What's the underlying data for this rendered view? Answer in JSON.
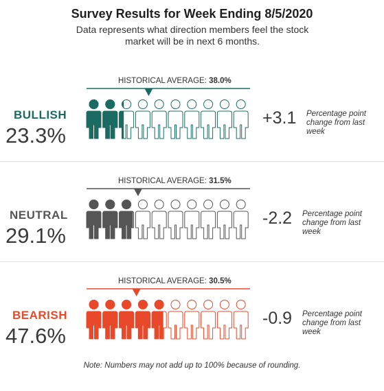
{
  "title": "Survey Results for Week Ending 8/5/2020",
  "subtitle": "Data represents what direction members feel the stock market will be in next 6 months.",
  "footnote": "Note: Numbers may not add up to 100% because of rounding.",
  "chart_data": {
    "type": "pictograph",
    "figures_per_row": 10,
    "series": [
      {
        "name": "BULLISH",
        "value": 23.3,
        "value_label": "23.3%",
        "historical_average": 38.0,
        "historical_label": "HISTORICAL AVERAGE: ",
        "historical_value_label": "38.0%",
        "change": 3.1,
        "change_label": "+3.1",
        "change_note": "Percentage point change from last week",
        "color": "#1b6b63"
      },
      {
        "name": "NEUTRAL",
        "value": 29.1,
        "value_label": "29.1%",
        "historical_average": 31.5,
        "historical_label": "HISTORICAL AVERAGE: ",
        "historical_value_label": "31.5%",
        "change": -2.2,
        "change_label": "-2.2",
        "change_note": "Percentage point change from last week",
        "color": "#555555"
      },
      {
        "name": "BEARISH",
        "value": 47.6,
        "value_label": "47.6%",
        "historical_average": 30.5,
        "historical_label": "HISTORICAL AVERAGE: ",
        "historical_value_label": "30.5%",
        "change": -0.9,
        "change_label": "-0.9",
        "change_note": "Percentage point change from last week",
        "color": "#e8492a"
      }
    ]
  }
}
